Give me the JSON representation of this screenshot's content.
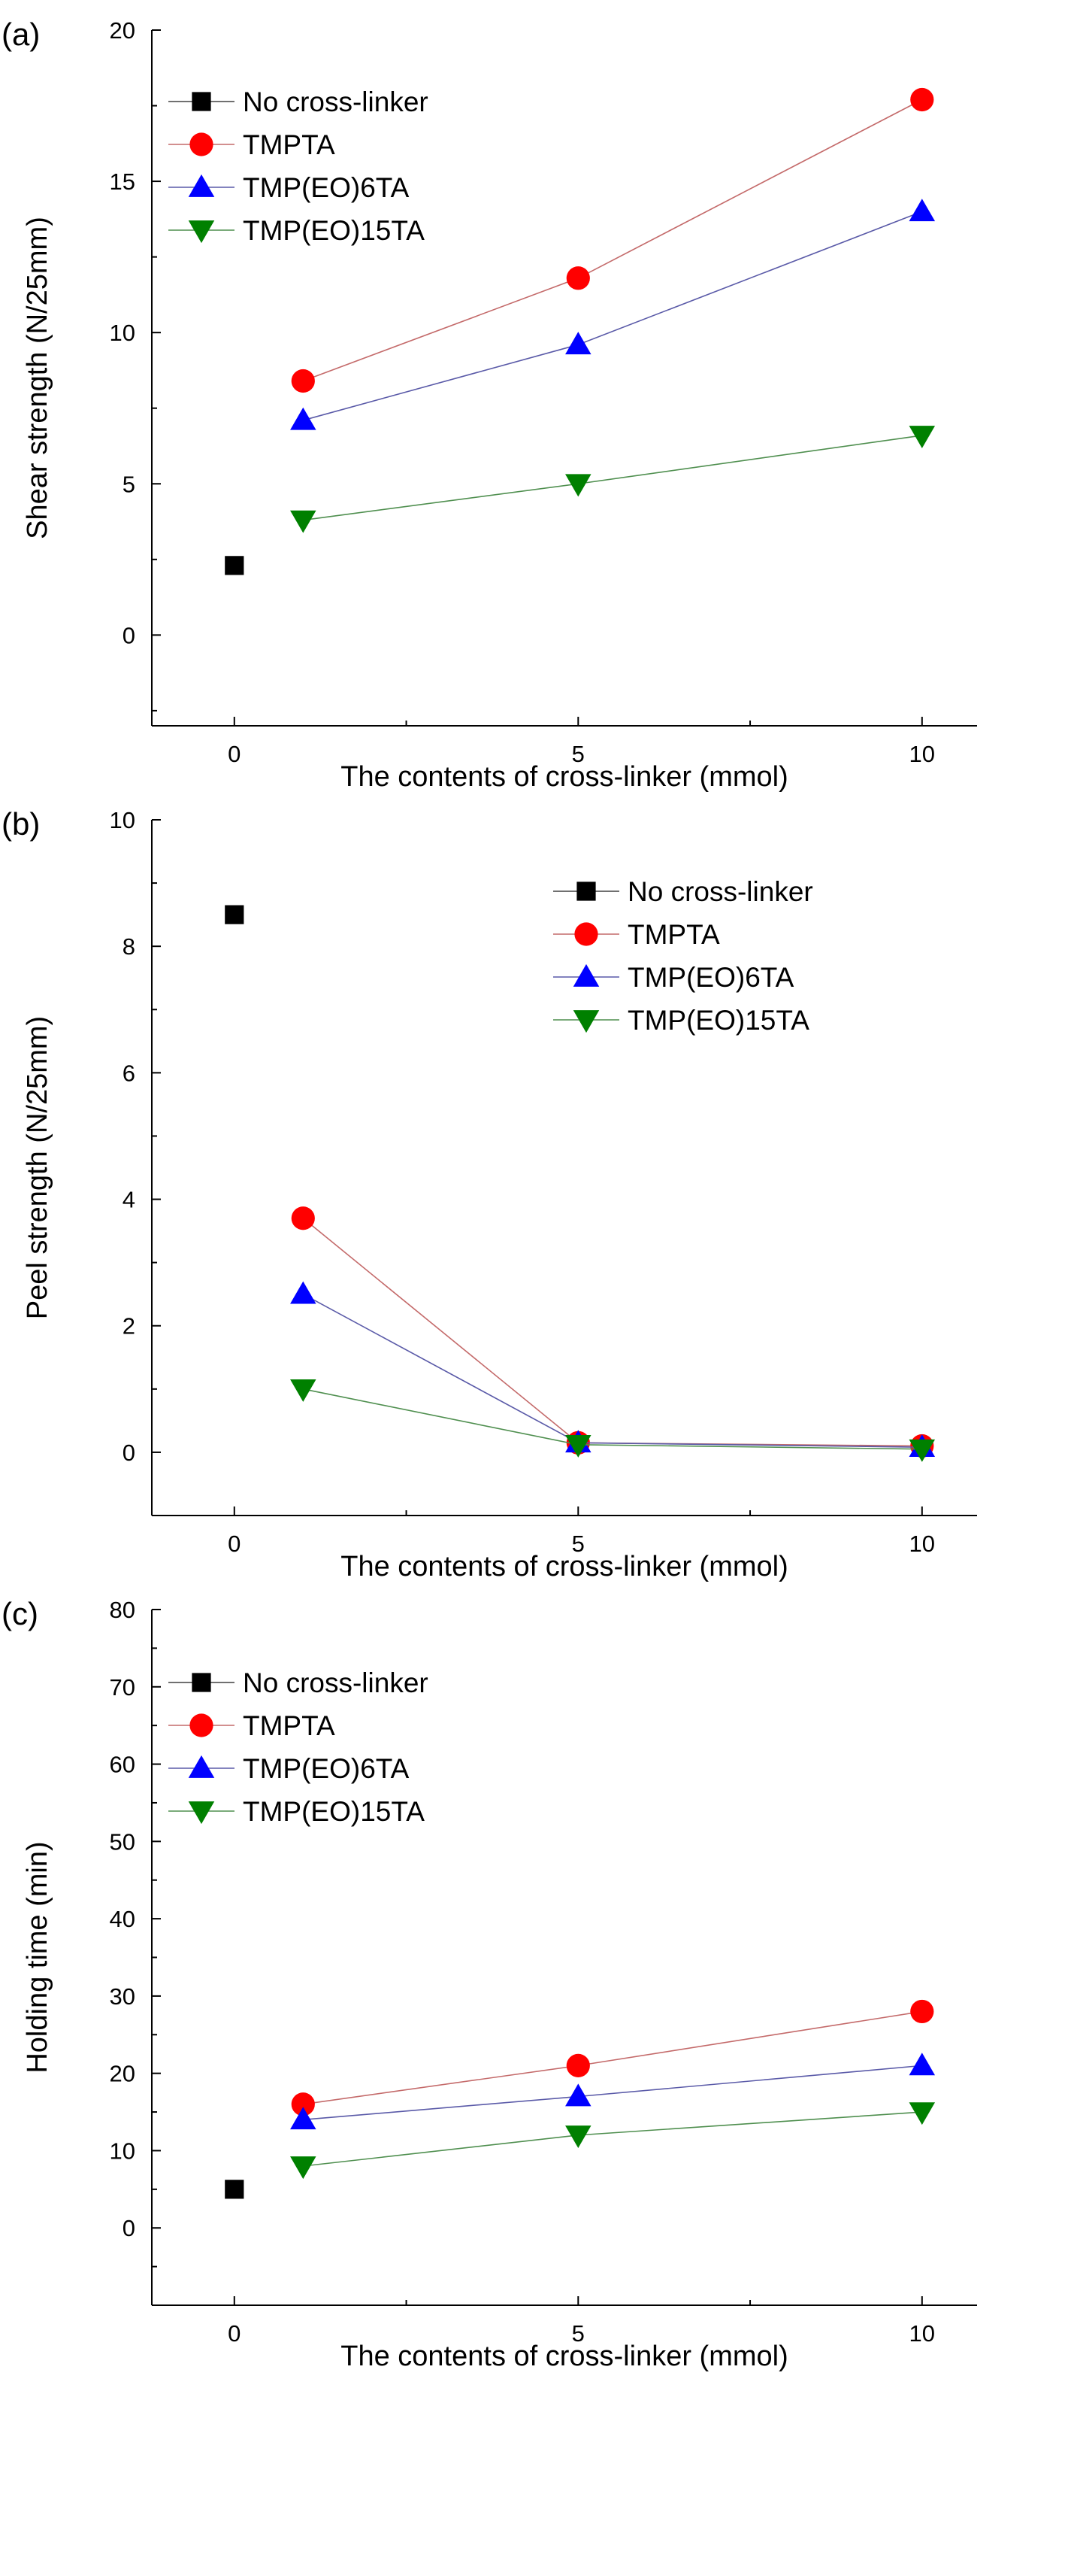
{
  "colors": {
    "no_crosslinker": "#000000",
    "tmpta": "#ff0000",
    "tmp_eo_6ta": "#0000ff",
    "tmp_eo_15ta": "#008000",
    "line_no_crosslinker": "#404040",
    "line_tmpta": "#c46a6a",
    "line_tmp_eo_6ta": "#5a5aa8",
    "line_tmp_eo_15ta": "#4f8f4f"
  },
  "chart_data": [
    {
      "type": "line",
      "panel_label": "(a)",
      "title": "",
      "xlabel": "The contents of cross-linker (mmol)",
      "ylabel": "Shear strength (N/25mm)",
      "xlim": [
        -1.2,
        10.8
      ],
      "ylim": [
        -3,
        20
      ],
      "xticks": [
        "0",
        "5",
        "10"
      ],
      "yticks": [
        "0",
        "5",
        "10",
        "15",
        "20"
      ],
      "legend_position": "top-left",
      "series": [
        {
          "key": "no_crosslinker",
          "name": "No cross-linker",
          "marker": "square",
          "x": [
            0
          ],
          "values": [
            2.3
          ]
        },
        {
          "key": "tmpta",
          "name": "TMPTA",
          "marker": "circle",
          "x": [
            1,
            5,
            10
          ],
          "values": [
            8.4,
            11.8,
            17.7
          ]
        },
        {
          "key": "tmp_eo_6ta",
          "name": "TMP(EO)6TA",
          "marker": "triangle-up",
          "x": [
            1,
            5,
            10
          ],
          "values": [
            7.1,
            9.6,
            14.0
          ]
        },
        {
          "key": "tmp_eo_15ta",
          "name": "TMP(EO)15TA",
          "marker": "triangle-down",
          "x": [
            1,
            5,
            10
          ],
          "values": [
            3.8,
            5.0,
            6.6
          ]
        }
      ]
    },
    {
      "type": "line",
      "panel_label": "(b)",
      "title": "",
      "xlabel": "The contents of cross-linker (mmol)",
      "ylabel": "Peel strength (N/25mm)",
      "xlim": [
        -1.2,
        10.8
      ],
      "ylim": [
        -1,
        10
      ],
      "xticks": [
        "0",
        "5",
        "10"
      ],
      "yticks": [
        "0",
        "2",
        "4",
        "6",
        "8",
        "10"
      ],
      "legend_position": "top-right",
      "series": [
        {
          "key": "no_crosslinker",
          "name": "No cross-linker",
          "marker": "square",
          "x": [
            0
          ],
          "values": [
            8.5
          ]
        },
        {
          "key": "tmpta",
          "name": "TMPTA",
          "marker": "circle",
          "x": [
            1,
            5,
            10
          ],
          "values": [
            3.7,
            0.15,
            0.1
          ]
        },
        {
          "key": "tmp_eo_6ta",
          "name": "TMP(EO)6TA",
          "marker": "triangle-up",
          "x": [
            1,
            5,
            10
          ],
          "values": [
            2.5,
            0.15,
            0.08
          ]
        },
        {
          "key": "tmp_eo_15ta",
          "name": "TMP(EO)15TA",
          "marker": "triangle-down",
          "x": [
            1,
            5,
            10
          ],
          "values": [
            1.0,
            0.12,
            0.05
          ]
        }
      ]
    },
    {
      "type": "line",
      "panel_label": "(c)",
      "title": "",
      "xlabel": "The contents of cross-linker (mmol)",
      "ylabel": "Holding time (min)",
      "xlim": [
        -1.2,
        10.8
      ],
      "ylim": [
        -10,
        80
      ],
      "xticks": [
        "0",
        "5",
        "10"
      ],
      "yticks": [
        "0",
        "10",
        "20",
        "30",
        "40",
        "50",
        "60",
        "70",
        "80"
      ],
      "legend_position": "top-left",
      "series": [
        {
          "key": "no_crosslinker",
          "name": "No cross-linker",
          "marker": "square",
          "x": [
            0
          ],
          "values": [
            5
          ]
        },
        {
          "key": "tmpta",
          "name": "TMPTA",
          "marker": "circle",
          "x": [
            1,
            5,
            10
          ],
          "values": [
            16,
            21,
            28
          ]
        },
        {
          "key": "tmp_eo_6ta",
          "name": "TMP(EO)6TA",
          "marker": "triangle-up",
          "x": [
            1,
            5,
            10
          ],
          "values": [
            14,
            17,
            21
          ]
        },
        {
          "key": "tmp_eo_15ta",
          "name": "TMP(EO)15TA",
          "marker": "triangle-down",
          "x": [
            1,
            5,
            10
          ],
          "values": [
            8,
            12,
            15
          ]
        }
      ]
    }
  ]
}
